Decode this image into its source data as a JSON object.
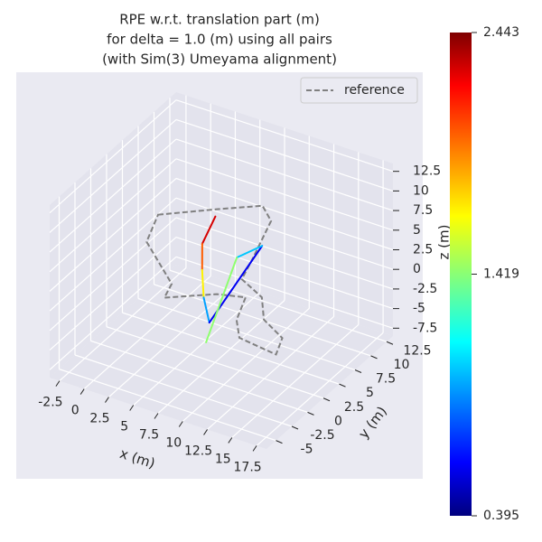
{
  "chart_data": {
    "type": "line3d",
    "title": [
      "RPE w.r.t. translation part (m)",
      "for delta = 1.0 (m) using all pairs",
      "(with Sim(3) Umeyama alignment)"
    ],
    "xlabel": "x (m)",
    "ylabel": "y (m)",
    "zlabel": "z (m)",
    "xlim": [
      -3.5,
      18.5
    ],
    "ylim": [
      -6.5,
      13.5
    ],
    "zlim": [
      -8.5,
      13.5
    ],
    "xticks": [
      -2.5,
      0.0,
      2.5,
      5.0,
      7.5,
      10.0,
      12.5,
      15.0,
      17.5
    ],
    "yticks": [
      -5.0,
      -2.5,
      0.0,
      2.5,
      5.0,
      7.5,
      10.0,
      12.5
    ],
    "zticks": [
      -7.5,
      -5.0,
      -2.5,
      0.0,
      2.5,
      5.0,
      7.5,
      10.0,
      12.5
    ],
    "series": [
      {
        "name": "reference",
        "color": "#808080",
        "dashed": true,
        "x": [
          -0.2,
          3.7,
          6.8,
          8.7,
          10.6,
          8.1,
          11.1,
          13.1,
          16.0,
          16.9,
          12.8,
          11.1,
          9.9,
          7.5,
          3.9,
          3.3,
          1.2
        ],
        "y": [
          5.5,
          8.7,
          11.1,
          9.5,
          3.4,
          5.8,
          4.3,
          1.5,
          -0.1,
          -2.5,
          -1.9,
          0.3,
          3.6,
          2.8,
          0.1,
          2.2,
          1.5
        ],
        "z": [
          5,
          5,
          5,
          5,
          5,
          0,
          0,
          0,
          0,
          0,
          0,
          0,
          0,
          0,
          0,
          0,
          5
        ]
      }
    ],
    "trajectory": {
      "x": [
        4.2,
        5.5,
        4.4,
        6.8,
        9.3,
        10.1,
        9.2,
        10.7
      ],
      "y": [
        7.7,
        3.6,
        5.3,
        1.8,
        -1.2,
        5.9,
        3.3,
        -3.9
      ],
      "z": [
        5,
        5,
        0,
        0,
        0,
        5,
        5,
        0
      ],
      "values": [
        2.44,
        2.1,
        1.9,
        1.5,
        0.45,
        0.8,
        1.3,
        1.6
      ]
    },
    "colorbar": {
      "cmap": "jet",
      "clim": [
        0.395,
        2.443
      ],
      "ticks": [
        0.395,
        1.419,
        2.443
      ]
    },
    "legend": "upper right",
    "grid": true
  }
}
